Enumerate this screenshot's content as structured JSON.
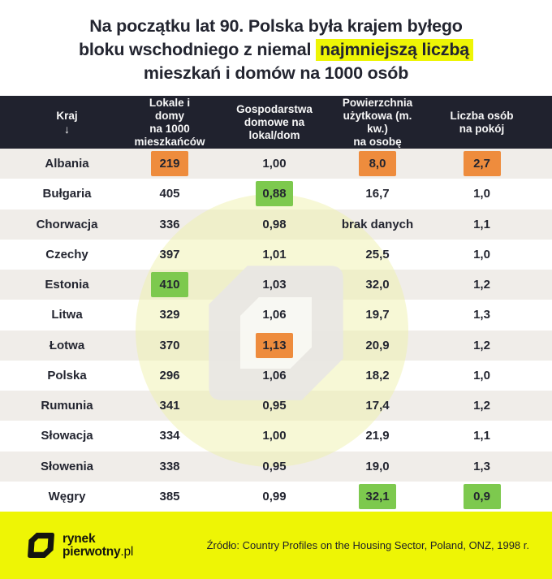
{
  "title": {
    "line1": "Na początku lat 90. Polska była krajem byłego",
    "line2_before": "bloku wschodniego z niemal ",
    "line2_highlight": "najmniejszą liczbą",
    "line3": "mieszkań i domów na 1000 osób"
  },
  "colors": {
    "navy": "#20222e",
    "yellow": "#eef505",
    "orange_highlight": "#ee8c3d",
    "green_highlight": "#7dc94e",
    "row_gray": "#f0ede9"
  },
  "table": {
    "columns": [
      {
        "label": "Kraj",
        "arrow": "↓"
      },
      {
        "label": "Lokale i domy\nna 1000\nmieszkańców"
      },
      {
        "label": "Gospodarstwa\ndomowe na\nlokal/dom"
      },
      {
        "label": "Powierzchnia\nużytkowa (m. kw.)\nna osobę"
      },
      {
        "label": "Liczba osób\nna pokój"
      }
    ],
    "rows": [
      {
        "country": "Albania",
        "values": [
          {
            "text": "219",
            "highlight": "orange"
          },
          {
            "text": "1,00"
          },
          {
            "text": "8,0",
            "highlight": "orange"
          },
          {
            "text": "2,7",
            "highlight": "orange"
          }
        ]
      },
      {
        "country": "Bułgaria",
        "values": [
          {
            "text": "405"
          },
          {
            "text": "0,88",
            "highlight": "green"
          },
          {
            "text": "16,7"
          },
          {
            "text": "1,0"
          }
        ]
      },
      {
        "country": "Chorwacja",
        "values": [
          {
            "text": "336"
          },
          {
            "text": "0,98"
          },
          {
            "text": "brak danych"
          },
          {
            "text": "1,1"
          }
        ]
      },
      {
        "country": "Czechy",
        "values": [
          {
            "text": "397"
          },
          {
            "text": "1,01"
          },
          {
            "text": "25,5"
          },
          {
            "text": "1,0"
          }
        ]
      },
      {
        "country": "Estonia",
        "values": [
          {
            "text": "410",
            "highlight": "green"
          },
          {
            "text": "1,03"
          },
          {
            "text": "32,0"
          },
          {
            "text": "1,2"
          }
        ]
      },
      {
        "country": "Litwa",
        "values": [
          {
            "text": "329"
          },
          {
            "text": "1,06"
          },
          {
            "text": "19,7"
          },
          {
            "text": "1,3"
          }
        ]
      },
      {
        "country": "Łotwa",
        "values": [
          {
            "text": "370"
          },
          {
            "text": "1,13",
            "highlight": "orange"
          },
          {
            "text": "20,9"
          },
          {
            "text": "1,2"
          }
        ]
      },
      {
        "country": "Polska",
        "values": [
          {
            "text": "296"
          },
          {
            "text": "1,06"
          },
          {
            "text": "18,2"
          },
          {
            "text": "1,0"
          }
        ]
      },
      {
        "country": "Rumunia",
        "values": [
          {
            "text": "341"
          },
          {
            "text": "0,95"
          },
          {
            "text": "17,4"
          },
          {
            "text": "1,2"
          }
        ]
      },
      {
        "country": "Słowacja",
        "values": [
          {
            "text": "334"
          },
          {
            "text": "1,00"
          },
          {
            "text": "21,9"
          },
          {
            "text": "1,1"
          }
        ]
      },
      {
        "country": "Słowenia",
        "values": [
          {
            "text": "338"
          },
          {
            "text": "0,95"
          },
          {
            "text": "19,0"
          },
          {
            "text": "1,3"
          }
        ]
      },
      {
        "country": "Węgry",
        "values": [
          {
            "text": "385"
          },
          {
            "text": "0,99"
          },
          {
            "text": "32,1",
            "highlight": "green"
          },
          {
            "text": "0,9",
            "highlight": "green"
          }
        ]
      }
    ]
  },
  "footer": {
    "logo_line1": "rynek",
    "logo_line2_bold": "pierwotny",
    "logo_line2_suffix": ".pl",
    "source": "Źródło: Country Profiles on the Housing Sector, Poland, ONZ, 1998 r."
  },
  "chart_data": {
    "type": "table",
    "title": "Na początku lat 90. Polska była krajem byłego bloku wschodniego z niemal najmniejszą liczbą mieszkań i domów na 1000 osób",
    "columns": [
      "Kraj",
      "Lokale i domy na 1000 mieszkańców",
      "Gospodarstwa domowe na lokal/dom",
      "Powierzchnia użytkowa (m. kw.) na osobę",
      "Liczba osób na pokój"
    ],
    "rows": [
      [
        "Albania",
        219,
        1.0,
        8.0,
        2.7
      ],
      [
        "Bułgaria",
        405,
        0.88,
        16.7,
        1.0
      ],
      [
        "Chorwacja",
        336,
        0.98,
        "brak danych",
        1.1
      ],
      [
        "Czechy",
        397,
        1.01,
        25.5,
        1.0
      ],
      [
        "Estonia",
        410,
        1.03,
        32.0,
        1.2
      ],
      [
        "Litwa",
        329,
        1.06,
        19.7,
        1.3
      ],
      [
        "Łotwa",
        370,
        1.13,
        20.9,
        1.2
      ],
      [
        "Polska",
        296,
        1.06,
        18.2,
        1.0
      ],
      [
        "Rumunia",
        341,
        0.95,
        17.4,
        1.2
      ],
      [
        "Słowacja",
        334,
        1.0,
        21.9,
        1.1
      ],
      [
        "Słowenia",
        338,
        0.95,
        19.0,
        1.3
      ],
      [
        "Węgry",
        385,
        0.99,
        32.1,
        0.9
      ]
    ],
    "highlights": [
      {
        "row": "Albania",
        "column": "Lokale i domy na 1000 mieszkańców",
        "color": "orange"
      },
      {
        "row": "Albania",
        "column": "Powierzchnia użytkowa (m. kw.) na osobę",
        "color": "orange"
      },
      {
        "row": "Albania",
        "column": "Liczba osób na pokój",
        "color": "orange"
      },
      {
        "row": "Bułgaria",
        "column": "Gospodarstwa domowe na lokal/dom",
        "color": "green"
      },
      {
        "row": "Estonia",
        "column": "Lokale i domy na 1000 mieszkańców",
        "color": "green"
      },
      {
        "row": "Łotwa",
        "column": "Gospodarstwa domowe na lokal/dom",
        "color": "orange"
      },
      {
        "row": "Węgry",
        "column": "Powierzchnia użytkowa (m. kw.) na osobę",
        "color": "green"
      },
      {
        "row": "Węgry",
        "column": "Liczba osób na pokój",
        "color": "green"
      }
    ],
    "source": "Źródło: Country Profiles on the Housing Sector, Poland, ONZ, 1998 r."
  }
}
